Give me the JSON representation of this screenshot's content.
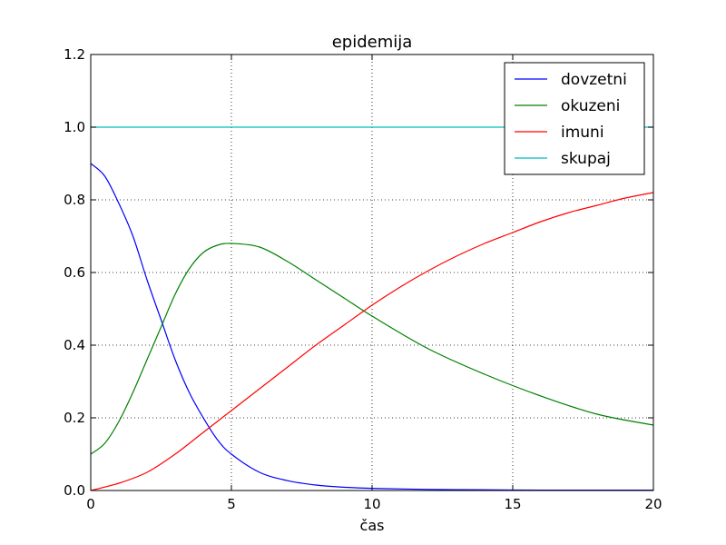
{
  "chart_data": {
    "type": "line",
    "title": "epidemija",
    "xlabel": "čas",
    "ylabel": "",
    "xlim": [
      0,
      20
    ],
    "ylim": [
      0.0,
      1.2
    ],
    "xticks": [
      0,
      5,
      10,
      15,
      20
    ],
    "xtick_labels": [
      "0",
      "5",
      "10",
      "15",
      "20"
    ],
    "yticks": [
      0.0,
      0.2,
      0.4,
      0.6,
      0.8,
      1.0,
      1.2
    ],
    "ytick_labels": [
      "0.0",
      "0.2",
      "0.4",
      "0.6",
      "0.8",
      "1.0",
      "1.2"
    ],
    "grid": true,
    "legend_position": "top-right",
    "series": [
      {
        "name": "dovzetni",
        "color": "#0000ff",
        "x": [
          0,
          0.5,
          1,
          1.5,
          2,
          2.5,
          3,
          3.5,
          4,
          4.5,
          5,
          6,
          7,
          8,
          9,
          10,
          12,
          14,
          16,
          18,
          20
        ],
        "y": [
          0.9,
          0.865,
          0.79,
          0.7,
          0.58,
          0.47,
          0.36,
          0.27,
          0.2,
          0.14,
          0.1,
          0.05,
          0.027,
          0.015,
          0.009,
          0.006,
          0.003,
          0.002,
          0.001,
          0.001,
          0.001
        ]
      },
      {
        "name": "okuzeni",
        "color": "#008000",
        "x": [
          0,
          0.5,
          1,
          1.5,
          2,
          2.5,
          3,
          3.5,
          4,
          4.5,
          5,
          6,
          7,
          8,
          9,
          10,
          12,
          14,
          16,
          18,
          20
        ],
        "y": [
          0.1,
          0.13,
          0.19,
          0.27,
          0.36,
          0.45,
          0.54,
          0.61,
          0.655,
          0.675,
          0.68,
          0.67,
          0.63,
          0.58,
          0.53,
          0.48,
          0.39,
          0.32,
          0.26,
          0.21,
          0.18
        ]
      },
      {
        "name": "imuni",
        "color": "#ff0000",
        "x": [
          0,
          1,
          2,
          3,
          4,
          5,
          6,
          7,
          8,
          9,
          10,
          11,
          12,
          13,
          14,
          15,
          16,
          17,
          18,
          19,
          20
        ],
        "y": [
          0.0,
          0.02,
          0.05,
          0.1,
          0.16,
          0.22,
          0.28,
          0.34,
          0.4,
          0.455,
          0.51,
          0.56,
          0.605,
          0.645,
          0.68,
          0.71,
          0.74,
          0.765,
          0.785,
          0.805,
          0.82
        ]
      },
      {
        "name": "skupaj",
        "color": "#00bfbf",
        "x": [
          0,
          20
        ],
        "y": [
          1.0,
          1.0
        ]
      }
    ]
  }
}
